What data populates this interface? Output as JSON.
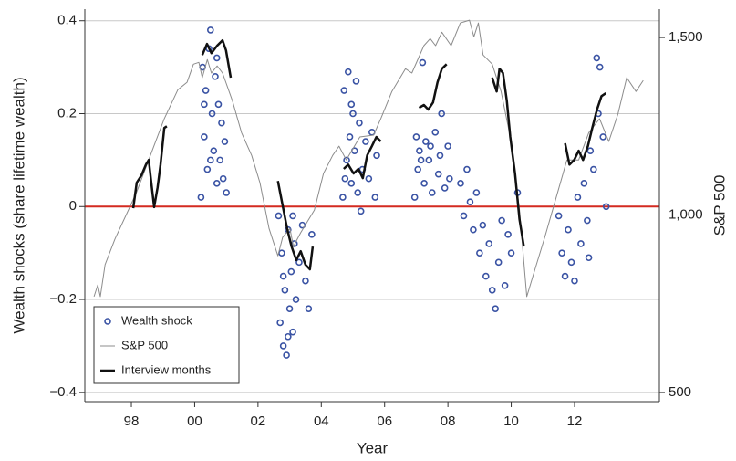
{
  "chart_data": {
    "type": "combo",
    "x_label": "Year",
    "y_label": "Wealth shocks (share lifetime wealth)",
    "y2_label": "S&P 500",
    "xlim": [
      1996.53,
      2014.68
    ],
    "xticks": [
      {
        "value": 1998,
        "label": "98"
      },
      {
        "value": 2000,
        "label": "00"
      },
      {
        "value": 2002,
        "label": "02"
      },
      {
        "value": 2004,
        "label": "04"
      },
      {
        "value": 2006,
        "label": "06"
      },
      {
        "value": 2008,
        "label": "08"
      },
      {
        "value": 2010,
        "label": "10"
      },
      {
        "value": 2012,
        "label": "12"
      }
    ],
    "ylim": [
      -0.42,
      0.425
    ],
    "yticks": [
      {
        "value": -0.4,
        "label": "−0.4"
      },
      {
        "value": -0.2,
        "label": "−0.2"
      },
      0,
      0.2,
      0.4
    ],
    "y2lim": [
      474,
      1580
    ],
    "y2ticks": [
      500,
      {
        "value": 1000,
        "label": "1,000"
      },
      {
        "value": 1500,
        "label": "1,500"
      }
    ],
    "grid": true,
    "reference_line": {
      "y": 0,
      "color": "#d42a20"
    },
    "legend": "lower left",
    "series": [
      {
        "name": "Wealth shock",
        "type": "scatter",
        "color": "#3a53a4",
        "x": [
          2000.2,
          2000.25,
          2000.3,
          2000.35,
          2000.4,
          2000.45,
          2000.5,
          2000.55,
          2000.6,
          2000.65,
          2000.7,
          2000.75,
          2000.8,
          2000.85,
          2000.9,
          2000.95,
          2001.0,
          2000.3,
          2000.5,
          2000.7,
          2002.65,
          2002.7,
          2002.75,
          2002.8,
          2002.85,
          2002.9,
          2002.95,
          2003.0,
          2003.05,
          2003.1,
          2003.15,
          2003.2,
          2003.3,
          2003.4,
          2003.5,
          2003.6,
          2003.7,
          2002.8,
          2002.95,
          2003.1,
          2004.68,
          2004.72,
          2004.8,
          2004.85,
          2004.9,
          2004.95,
          2005.0,
          2005.05,
          2005.1,
          2005.15,
          2005.2,
          2005.3,
          2005.4,
          2005.5,
          2005.6,
          2005.7,
          2005.75,
          2004.75,
          2004.95,
          2005.25,
          2006.95,
          2007.0,
          2007.05,
          2007.1,
          2007.2,
          2007.25,
          2007.3,
          2007.4,
          2007.5,
          2007.6,
          2007.7,
          2007.8,
          2007.9,
          2008.0,
          2008.05,
          2007.15,
          2007.45,
          2007.75,
          2008.4,
          2008.5,
          2008.6,
          2008.7,
          2008.8,
          2008.9,
          2009.0,
          2009.1,
          2009.2,
          2009.3,
          2009.4,
          2009.5,
          2009.6,
          2009.7,
          2009.8,
          2009.9,
          2010.0,
          2010.2,
          2011.5,
          2011.6,
          2011.7,
          2011.8,
          2011.9,
          2012.0,
          2012.1,
          2012.2,
          2012.3,
          2012.4,
          2012.5,
          2012.6,
          2012.7,
          2012.75,
          2012.8,
          2012.9,
          2013.0,
          2012.45
        ],
        "values": [
          0.02,
          0.3,
          0.15,
          0.25,
          0.08,
          0.34,
          0.38,
          0.2,
          0.12,
          0.28,
          0.05,
          0.22,
          0.1,
          0.18,
          0.06,
          0.14,
          0.03,
          0.22,
          0.1,
          0.32,
          -0.02,
          -0.25,
          -0.1,
          -0.3,
          -0.18,
          -0.32,
          -0.05,
          -0.22,
          -0.14,
          -0.27,
          -0.08,
          -0.2,
          -0.12,
          -0.04,
          -0.16,
          -0.22,
          -0.06,
          -0.15,
          -0.28,
          -0.02,
          0.02,
          0.25,
          0.1,
          0.29,
          0.15,
          0.05,
          0.2,
          0.12,
          0.27,
          0.03,
          0.18,
          0.08,
          0.14,
          0.06,
          0.16,
          0.02,
          0.11,
          0.06,
          0.22,
          -0.01,
          0.02,
          0.15,
          0.08,
          0.12,
          0.31,
          0.05,
          0.14,
          0.1,
          0.03,
          0.16,
          0.07,
          0.2,
          0.04,
          0.13,
          0.06,
          0.1,
          0.13,
          0.11,
          0.05,
          -0.02,
          0.08,
          0.01,
          -0.05,
          0.03,
          -0.1,
          -0.04,
          -0.15,
          -0.08,
          -0.18,
          -0.22,
          -0.12,
          -0.03,
          -0.17,
          -0.06,
          -0.1,
          0.03,
          -0.02,
          -0.1,
          -0.15,
          -0.05,
          -0.12,
          -0.16,
          0.02,
          -0.08,
          0.05,
          -0.03,
          0.12,
          0.08,
          0.32,
          0.2,
          0.3,
          0.15,
          0.0,
          -0.11
        ]
      },
      {
        "name": "S&P 500",
        "type": "line",
        "axis": "y2",
        "color": "#8c8c8c",
        "x": [
          1996.82,
          1996.94,
          1997.02,
          1997.17,
          1997.48,
          1997.88,
          1998.17,
          1998.6,
          1999.04,
          1999.47,
          1999.76,
          1999.96,
          2000.13,
          2000.24,
          2000.4,
          2000.53,
          2000.71,
          2000.88,
          2001.19,
          2001.48,
          2001.8,
          2002.06,
          2002.35,
          2002.63,
          2002.78,
          2003.01,
          2003.12,
          2003.35,
          2003.78,
          2004.07,
          2004.36,
          2004.56,
          2004.79,
          2005.22,
          2005.65,
          2005.88,
          2006.23,
          2006.66,
          2006.86,
          2007.24,
          2007.44,
          2007.61,
          2007.81,
          2008.1,
          2008.39,
          2008.68,
          2008.82,
          2008.96,
          2009.11,
          2009.4,
          2009.68,
          2009.97,
          2010.26,
          2010.49,
          2010.75,
          2011.06,
          2011.47,
          2011.76,
          2012.13,
          2012.45,
          2012.79,
          2013.08,
          2013.37,
          2013.65,
          2013.94,
          2014.17
        ],
        "values": [
          770,
          803,
          770,
          860,
          932,
          1009,
          1065,
          1168,
          1271,
          1353,
          1374,
          1425,
          1430,
          1387,
          1438,
          1400,
          1420,
          1400,
          1322,
          1232,
          1168,
          1091,
          962,
          885,
          937,
          962,
          911,
          950,
          1014,
          1117,
          1168,
          1194,
          1155,
          1220,
          1225,
          1271,
          1348,
          1412,
          1400,
          1477,
          1497,
          1477,
          1515,
          1477,
          1541,
          1549,
          1502,
          1541,
          1451,
          1425,
          1348,
          1220,
          1014,
          770,
          847,
          937,
          1065,
          1155,
          1155,
          1232,
          1271,
          1207,
          1284,
          1387,
          1348,
          1379
        ]
      },
      {
        "name": "Interview months",
        "type": "line",
        "axis": "y2",
        "color": "#111111",
        "x": [
          1998.06,
          1998.17,
          1998.32,
          1998.46,
          1998.55,
          1998.63,
          1998.72,
          1998.83,
          1998.92,
          1999.04,
          1999.12,
          null,
          2000.24,
          2000.39,
          2000.53,
          2000.71,
          2000.88,
          2000.99,
          2001.14,
          null,
          2002.63,
          2002.78,
          2002.92,
          2003.06,
          2003.21,
          2003.35,
          2003.5,
          2003.64,
          2003.73,
          null,
          2004.71,
          2004.85,
          2005.02,
          2005.17,
          2005.31,
          2005.45,
          2005.6,
          2005.74,
          2005.88,
          null,
          2007.09,
          2007.24,
          2007.38,
          2007.53,
          2007.67,
          2007.81,
          2007.96,
          null,
          2009.4,
          2009.54,
          2009.63,
          2009.74,
          2009.86,
          2009.97,
          2010.12,
          2010.26,
          2010.4,
          null,
          2011.7,
          2011.84,
          2011.99,
          2012.13,
          2012.27,
          2012.42,
          2012.56,
          2012.71,
          2012.85,
          2012.99
        ],
        "values": [
          1019,
          1091,
          1112,
          1142,
          1155,
          1091,
          1022,
          1078,
          1142,
          1245,
          1250,
          null,
          1451,
          1482,
          1456,
          1477,
          1492,
          1464,
          1387,
          null,
          1096,
          1027,
          962,
          911,
          873,
          898,
          860,
          847,
          911,
          null,
          1130,
          1142,
          1117,
          1130,
          1104,
          1168,
          1194,
          1220,
          1207,
          null,
          1302,
          1310,
          1297,
          1317,
          1374,
          1412,
          1425,
          null,
          1387,
          1348,
          1412,
          1400,
          1322,
          1220,
          1117,
          988,
          911,
          null,
          1202,
          1142,
          1155,
          1181,
          1155,
          1194,
          1245,
          1297,
          1335,
          1343
        ]
      }
    ]
  }
}
